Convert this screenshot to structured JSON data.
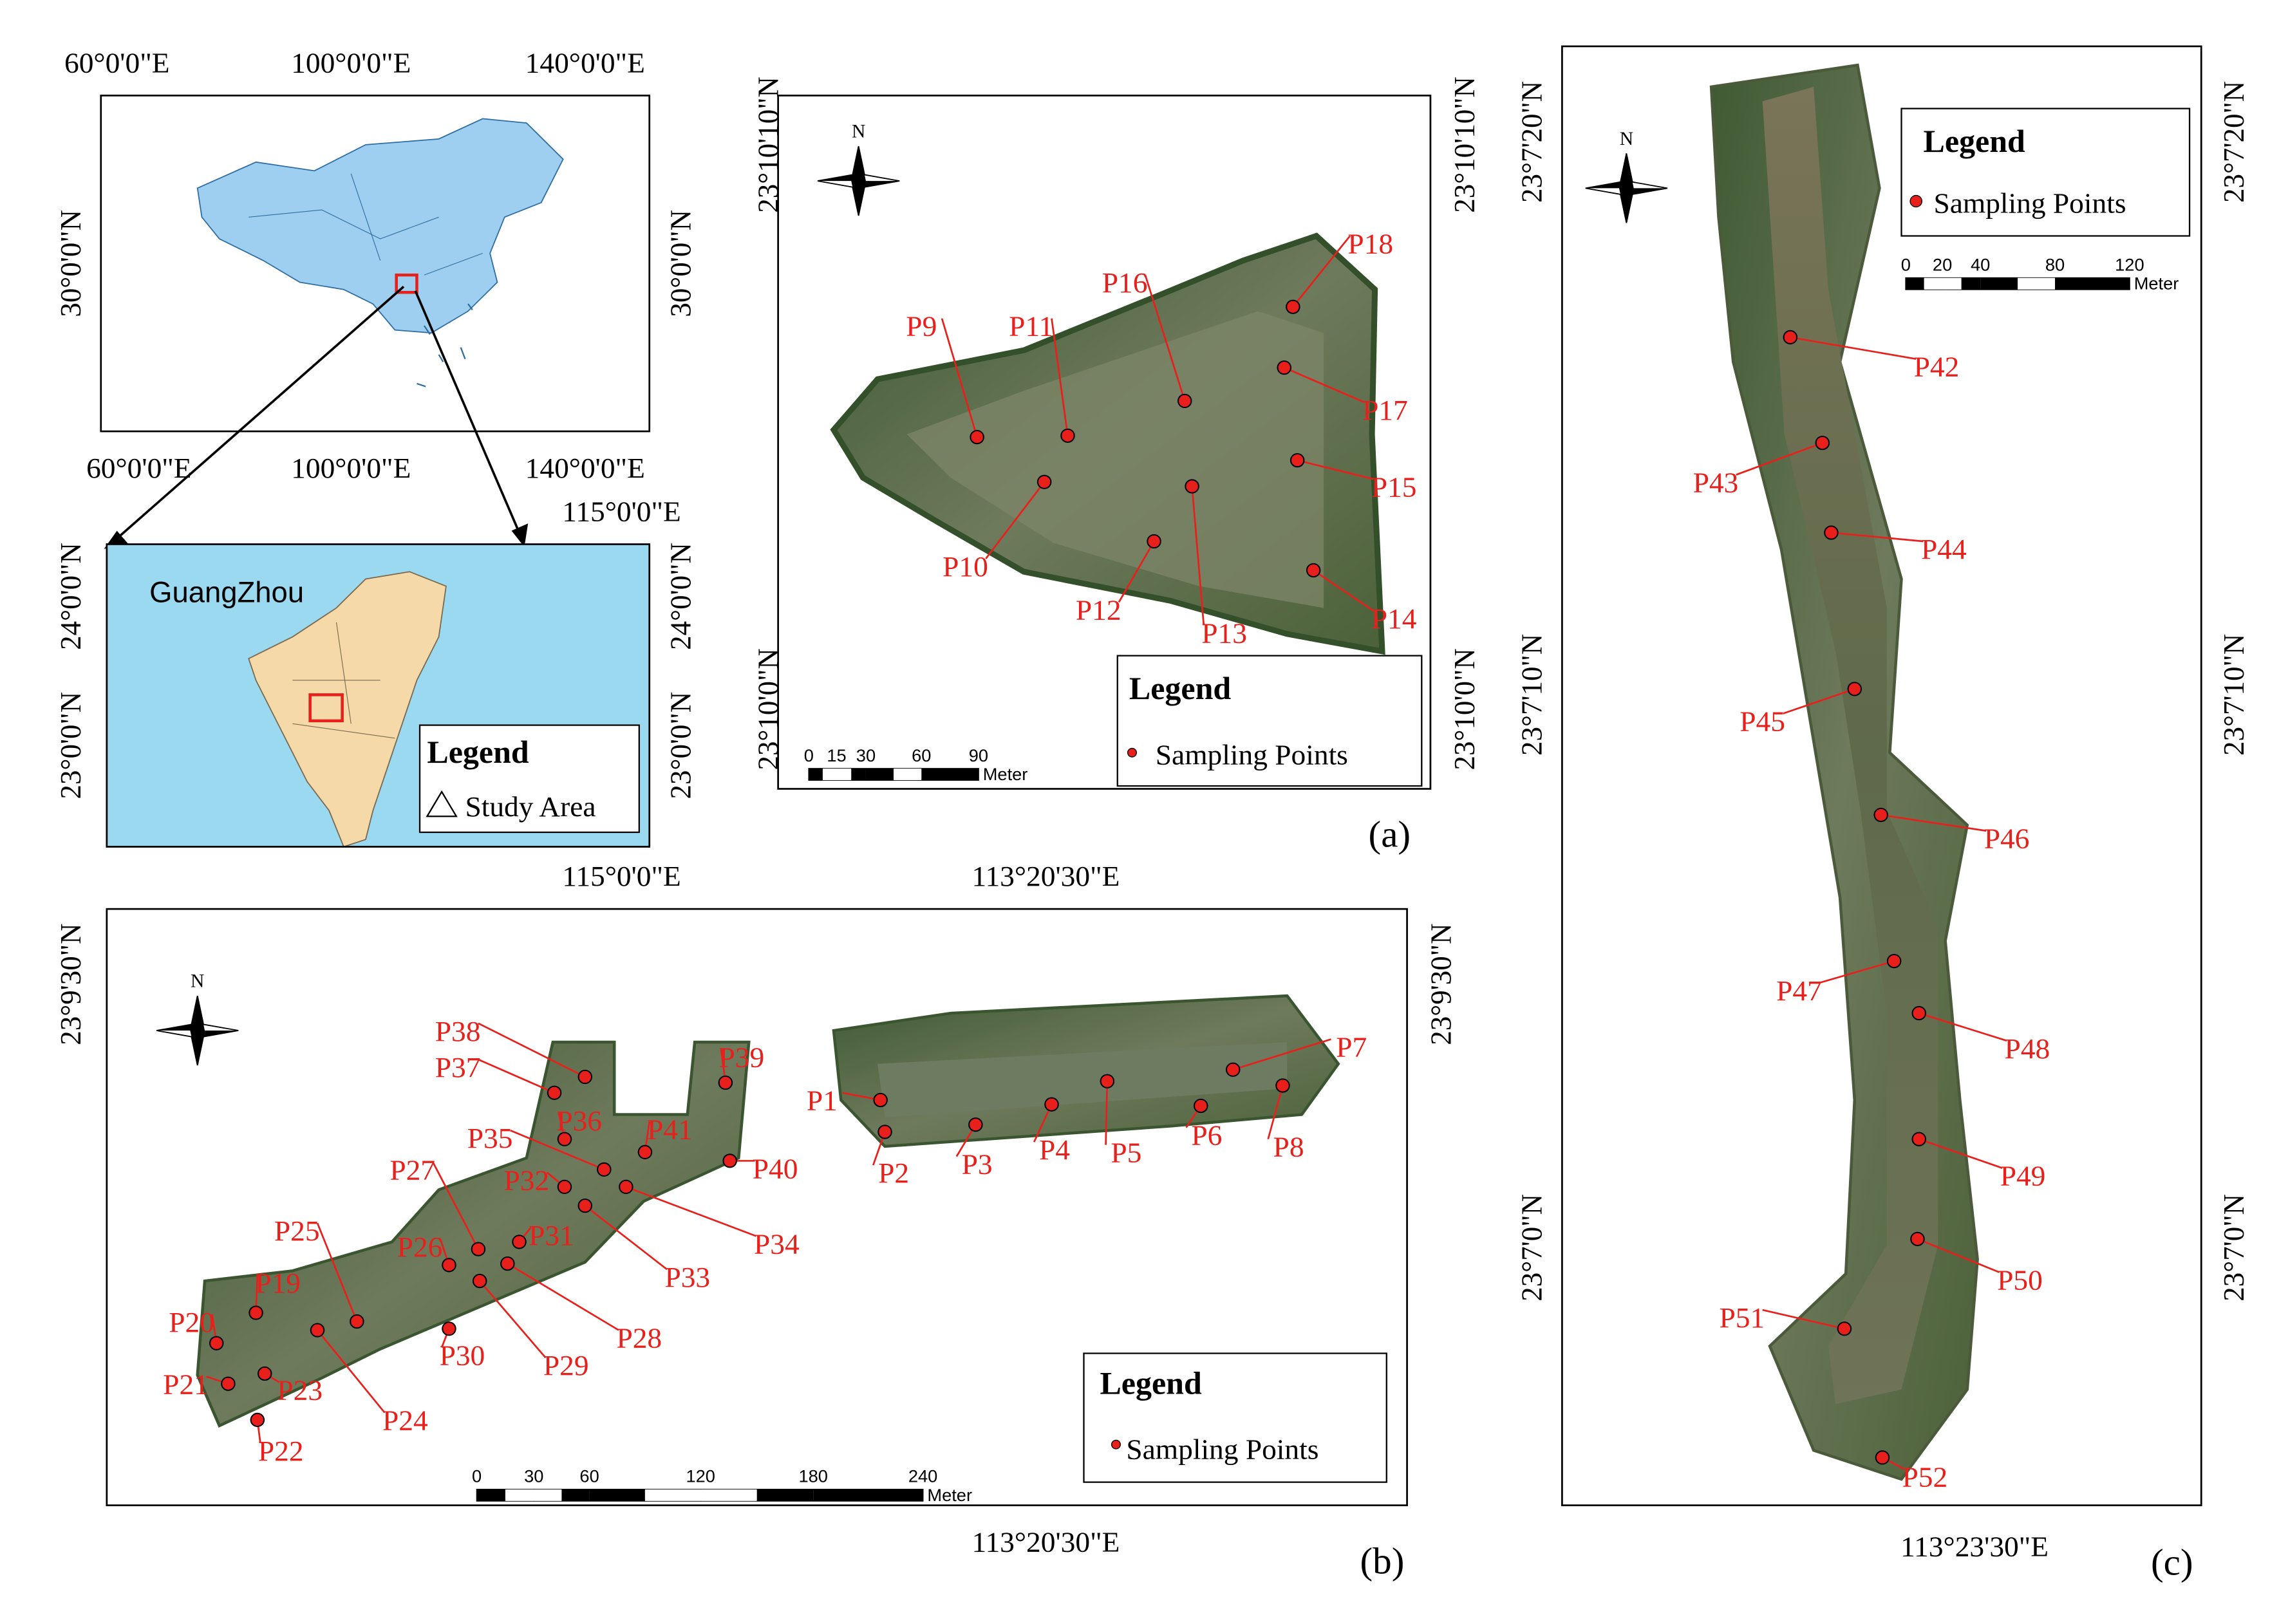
{
  "inset_china": {
    "top_labels": [
      "60°0'0\"E",
      "100°0'0\"E",
      "140°0'0\"E"
    ],
    "bottom_labels": [
      "60°0'0\"E",
      "100°0'0\"E",
      "140°0'0\"E"
    ],
    "left_label": "30°0'0\"N",
    "right_label": "30°0'0\"N"
  },
  "inset_guangzhou": {
    "city": "GuangZhou",
    "top_label": "115°0'0\"E",
    "bottom_label": "115°0'0\"E",
    "left_labels": [
      "24°0'0\"N",
      "23°0'0\"N"
    ],
    "right_labels": [
      "24°0'0\"N",
      "23°0'0\"N"
    ],
    "legend_title": "Legend",
    "legend_item": "Study Area"
  },
  "panel_a": {
    "tag": "(a)",
    "north": "N",
    "left_labels": [
      "23°10'10\"N",
      "23°10'0\"N"
    ],
    "right_labels": [
      "23°10'10\"N",
      "23°10'0\"N"
    ],
    "legend_title": "Legend",
    "legend_item": "Sampling Points",
    "scale_ticks": [
      0,
      15,
      30,
      60,
      90
    ],
    "scale_unit": "Meter",
    "points": [
      "P9",
      "P11",
      "P16",
      "P18",
      "P17",
      "P15",
      "P10",
      "P13",
      "P12",
      "P14"
    ]
  },
  "panel_b": {
    "tag": "(b)",
    "north": "N",
    "top_label": "113°20'30\"E",
    "bottom_label": "113°20'30\"E",
    "left_label": "23°9'30\"N",
    "right_label": "23°9'30\"N",
    "legend_title": "Legend",
    "legend_item": "Sampling Points",
    "scale_ticks": [
      0,
      30,
      60,
      120,
      180,
      240
    ],
    "scale_unit": "Meter",
    "points": [
      "P1",
      "P2",
      "P3",
      "P4",
      "P5",
      "P6",
      "P7",
      "P8",
      "P38",
      "P37",
      "P36",
      "P39",
      "P41",
      "P40",
      "P35",
      "P32",
      "P34",
      "P27",
      "P31",
      "P33",
      "P26",
      "P28",
      "P29",
      "P25",
      "P19",
      "P20",
      "P30",
      "P24",
      "P23",
      "P21",
      "P22"
    ]
  },
  "panel_c": {
    "tag": "(c)",
    "north": "N",
    "bottom_label": "113°23'30\"E",
    "left_labels": [
      "23°7'20\"N",
      "23°7'10\"N",
      "23°7'0\"N"
    ],
    "right_labels": [
      "23°7'20\"N",
      "23°7'10\"N",
      "23°7'0\"N"
    ],
    "legend_title": "Legend",
    "legend_item": "Sampling Points",
    "scale_ticks": [
      0,
      20,
      40,
      80,
      120
    ],
    "scale_unit": "Meter",
    "points": [
      "P42",
      "P43",
      "P44",
      "P45",
      "P46",
      "P47",
      "P48",
      "P49",
      "P50",
      "P51",
      "P52"
    ]
  }
}
